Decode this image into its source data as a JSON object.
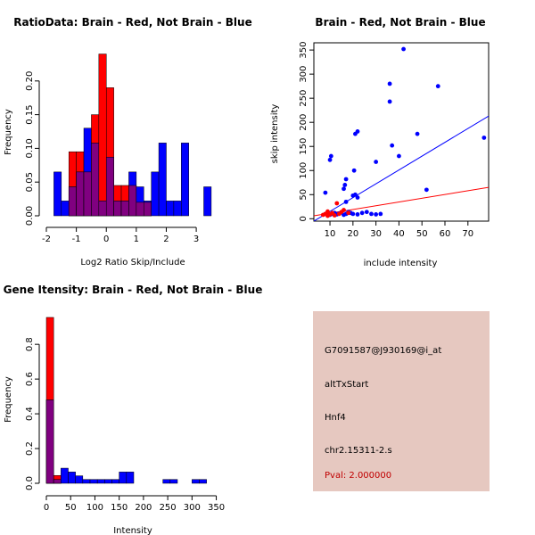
{
  "colors": {
    "brain": "#ff0000",
    "not_brain": "#0000ff",
    "overlap": "#800080",
    "info_bg": "#e6c8c0",
    "pval": "#c00000"
  },
  "info": {
    "probe": "G7091587@J930169@i_at",
    "event": "altTxStart",
    "gene": "Hnf4",
    "locus": "chr2.15311-2.s",
    "pval": "Pval: 2.000000"
  },
  "chart_data": [
    {
      "type": "bar",
      "title": "RatioData: Brain - Red, Not Brain - Blue",
      "xlabel": "Log2 Ratio Skip/Include",
      "ylabel": "Frequency",
      "xlim": [
        -2,
        3.8
      ],
      "ylim": [
        0,
        0.25
      ],
      "xticks": [
        -2,
        -1,
        0,
        1,
        2,
        3
      ],
      "yticks": [
        0.0,
        0.05,
        0.1,
        0.15,
        0.2
      ],
      "ytick_labels": [
        "0.00",
        "0.05",
        "0.10",
        "0.15",
        "0.20"
      ],
      "bin_width": 0.25,
      "series": [
        {
          "name": "Brain",
          "color": "#ff0000",
          "bin_starts": [
            -1.25,
            -1.0,
            -0.75,
            -0.5,
            -0.25,
            0.0,
            0.25,
            0.5,
            0.75,
            1.0,
            1.25
          ],
          "values": [
            0.095,
            0.095,
            0.065,
            0.15,
            0.24,
            0.19,
            0.045,
            0.045,
            0.045,
            0.02,
            0.02
          ]
        },
        {
          "name": "Not Brain",
          "color": "#0000ff",
          "bin_starts": [
            -1.75,
            -1.5,
            -1.25,
            -1.0,
            -0.75,
            -0.5,
            -0.25,
            0.0,
            0.25,
            0.5,
            0.75,
            1.0,
            1.25,
            1.5,
            1.75,
            2.0,
            2.25,
            2.5,
            2.75,
            3.0,
            3.25,
            3.5
          ],
          "values": [
            0.065,
            0.022,
            0.043,
            0.065,
            0.13,
            0.108,
            0.022,
            0.087,
            0.022,
            0.022,
            0.065,
            0.043,
            0.022,
            0.065,
            0.108,
            0.022,
            0.022,
            0.108,
            0.0,
            0.0,
            0.043,
            0.0
          ]
        }
      ]
    },
    {
      "type": "scatter",
      "title": "Brain - Red, Not Brain - Blue",
      "xlabel": "include intensity",
      "ylabel": "skip intensity",
      "xlim": [
        3,
        79
      ],
      "ylim": [
        -5,
        365
      ],
      "xticks": [
        10,
        20,
        30,
        40,
        50,
        60,
        70
      ],
      "yticks": [
        0,
        50,
        100,
        150,
        200,
        250,
        300,
        350
      ],
      "series": [
        {
          "name": "Not Brain",
          "color": "#0000ff",
          "points": [
            [
              8,
              54
            ],
            [
              10,
              122
            ],
            [
              10.5,
              130
            ],
            [
              16,
              62
            ],
            [
              16.5,
              70
            ],
            [
              17,
              82
            ],
            [
              20.5,
              100
            ],
            [
              21,
              176
            ],
            [
              22,
              181
            ],
            [
              21,
              50
            ],
            [
              22,
              44
            ],
            [
              20,
              48
            ],
            [
              36,
              280
            ],
            [
              36,
              243
            ],
            [
              37,
              152
            ],
            [
              40,
              130
            ],
            [
              42,
              352
            ],
            [
              48,
              176
            ],
            [
              57,
              275
            ],
            [
              52,
              60
            ],
            [
              30,
              118
            ],
            [
              77,
              168
            ],
            [
              8,
              10
            ],
            [
              9,
              12
            ],
            [
              10,
              8
            ],
            [
              11,
              10
            ],
            [
              12,
              12
            ],
            [
              13,
              9
            ],
            [
              14,
              11
            ],
            [
              15,
              13
            ],
            [
              16,
              8
            ],
            [
              17,
              10
            ],
            [
              18,
              14
            ],
            [
              19,
              12
            ],
            [
              20,
              10
            ],
            [
              22,
              9
            ],
            [
              24,
              12
            ],
            [
              26,
              14
            ],
            [
              28,
              10
            ],
            [
              30,
              9
            ],
            [
              32,
              10
            ],
            [
              17,
              35
            ]
          ]
        },
        {
          "name": "Brain",
          "color": "#ff0000",
          "points": [
            [
              7,
              8
            ],
            [
              8,
              10
            ],
            [
              9,
              6
            ],
            [
              10,
              9
            ],
            [
              11,
              12
            ],
            [
              12,
              7
            ],
            [
              13,
              32
            ],
            [
              14,
              10
            ],
            [
              15,
              14
            ],
            [
              16,
              18
            ],
            [
              18,
              12
            ],
            [
              9,
              15
            ]
          ]
        }
      ],
      "fit_lines": [
        {
          "name": "Not Brain fit",
          "color": "#0000ff",
          "x": [
            3,
            79
          ],
          "y": [
            -5,
            213
          ]
        },
        {
          "name": "Brain fit",
          "color": "#ff0000",
          "x": [
            3,
            79
          ],
          "y": [
            6,
            65
          ]
        }
      ]
    },
    {
      "type": "bar",
      "title": "Gene Itensity: Brain - Red, Not Brain - Blue",
      "xlabel": "Intensity",
      "ylabel": "Frequency",
      "xlim": [
        0,
        360
      ],
      "ylim": [
        0,
        0.96
      ],
      "xticks": [
        0,
        50,
        100,
        150,
        200,
        250,
        300,
        350
      ],
      "yticks": [
        0.0,
        0.2,
        0.4,
        0.6,
        0.8
      ],
      "ytick_labels": [
        "0.0",
        "0.2",
        "0.4",
        "0.6",
        "0.8"
      ],
      "bin_width": 15,
      "series": [
        {
          "name": "Brain",
          "color": "#ff0000",
          "bin_starts": [
            0,
            15
          ],
          "values": [
            0.955,
            0.045
          ]
        },
        {
          "name": "Not Brain",
          "color": "#0000ff",
          "bin_starts": [
            0,
            15,
            30,
            45,
            60,
            75,
            90,
            105,
            120,
            135,
            150,
            165,
            180,
            195,
            210,
            225,
            240,
            255,
            270,
            285,
            300,
            315,
            330,
            345
          ],
          "values": [
            0.48,
            0.022,
            0.087,
            0.065,
            0.043,
            0.022,
            0.022,
            0.022,
            0.022,
            0.022,
            0.065,
            0.065,
            0.0,
            0.0,
            0.0,
            0.0,
            0.022,
            0.022,
            0.0,
            0.0,
            0.022,
            0.022,
            0.0,
            0.0
          ]
        }
      ]
    }
  ]
}
